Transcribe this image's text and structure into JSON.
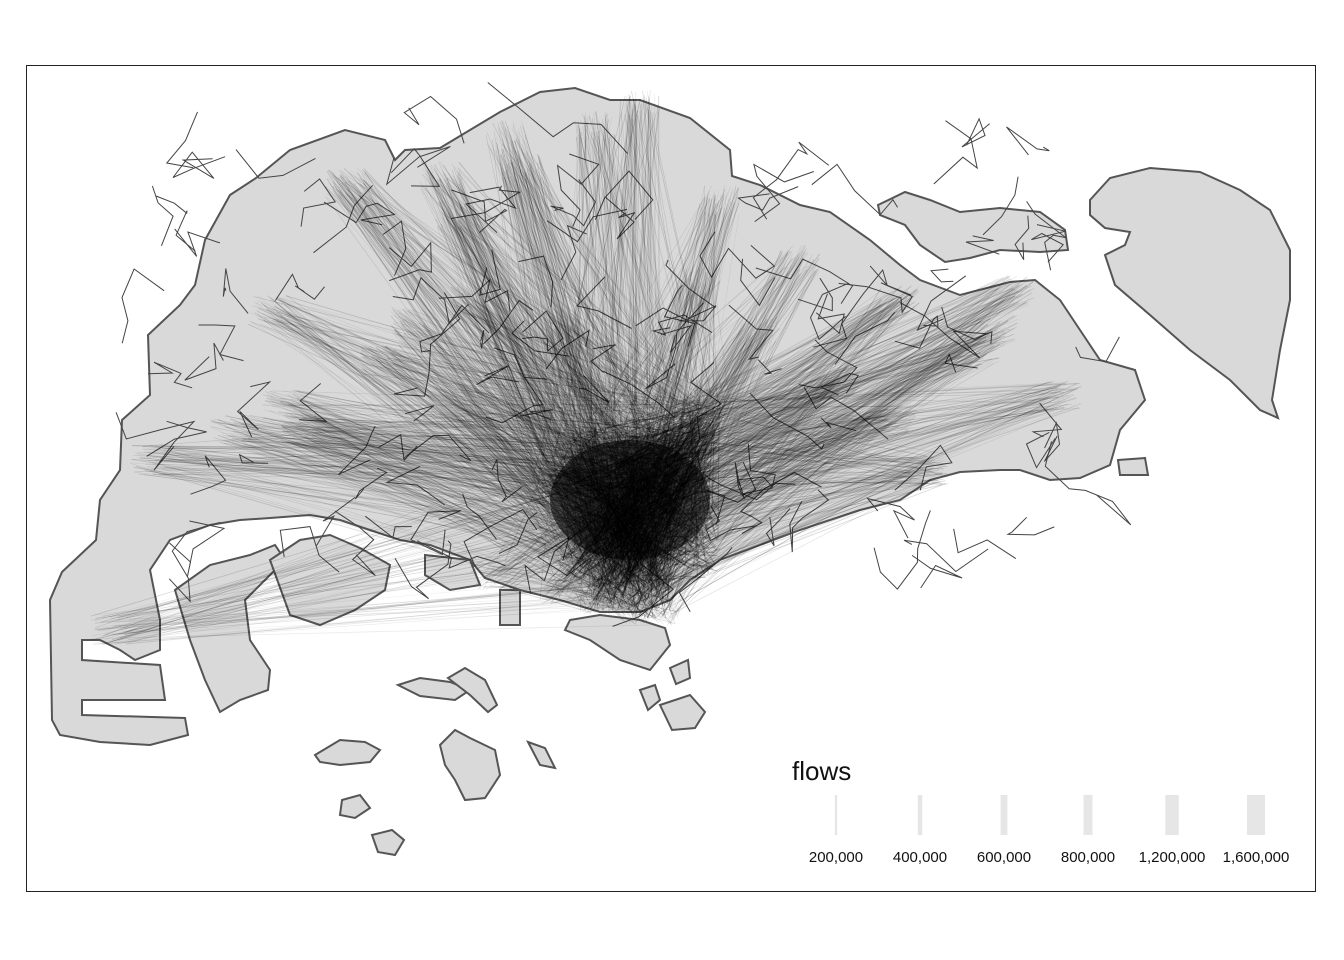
{
  "legend": {
    "title": "flows",
    "entries": [
      {
        "label": "200,000",
        "value": 200000
      },
      {
        "label": "400,000",
        "value": 400000
      },
      {
        "label": "600,000",
        "value": 600000
      },
      {
        "label": "800,000",
        "value": 800000
      },
      {
        "label": "1,200,000",
        "value": 1200000
      },
      {
        "label": "1,600,000",
        "value": 1600000
      }
    ]
  },
  "colors": {
    "land_fill": "#d9d9d9",
    "land_border": "#555555",
    "flow_line": "#000000",
    "legend_bar": "#e6e6e6"
  }
}
